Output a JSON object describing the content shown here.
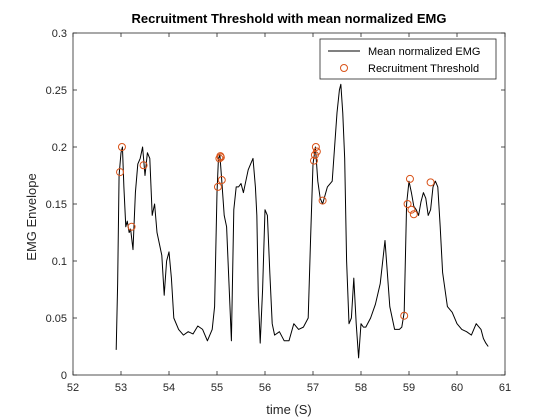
{
  "chart_data": {
    "type": "line",
    "title": "Recruitment Threshold with mean normalized EMG",
    "xlabel": "time (S)",
    "ylabel": "EMG Envelope",
    "xlim": [
      52,
      61
    ],
    "ylim": [
      0,
      0.3
    ],
    "xticks": [
      52,
      53,
      54,
      55,
      56,
      57,
      58,
      59,
      60,
      61
    ],
    "yticks": [
      0,
      0.05,
      0.1,
      0.15,
      0.2,
      0.25,
      0.3
    ],
    "xtick_labels": [
      "52",
      "53",
      "54",
      "55",
      "56",
      "57",
      "58",
      "59",
      "60",
      "61"
    ],
    "ytick_labels": [
      "0",
      "0.05",
      "0.1",
      "0.15",
      "0.2",
      "0.25",
      "0.3"
    ],
    "grid": false,
    "legend_position": "top-right",
    "series": [
      {
        "name": "Mean normalized EMG",
        "style": "line",
        "color": "#000000",
        "x": [
          52.9,
          52.93,
          52.96,
          53.0,
          53.03,
          53.06,
          53.1,
          53.13,
          53.17,
          53.2,
          53.25,
          53.3,
          53.35,
          53.4,
          53.45,
          53.5,
          53.55,
          53.6,
          53.65,
          53.7,
          53.75,
          53.8,
          53.85,
          53.9,
          53.95,
          54.0,
          54.05,
          54.1,
          54.2,
          54.3,
          54.4,
          54.5,
          54.6,
          54.7,
          54.8,
          54.9,
          54.95,
          55.0,
          55.03,
          55.06,
          55.1,
          55.15,
          55.2,
          55.25,
          55.3,
          55.35,
          55.4,
          55.45,
          55.5,
          55.55,
          55.6,
          55.65,
          55.7,
          55.75,
          55.8,
          55.83,
          55.86,
          55.9,
          55.95,
          56.0,
          56.05,
          56.1,
          56.15,
          56.2,
          56.3,
          56.4,
          56.5,
          56.6,
          56.7,
          56.8,
          56.9,
          56.95,
          57.0,
          57.05,
          57.1,
          57.15,
          57.2,
          57.3,
          57.4,
          57.45,
          57.5,
          57.55,
          57.58,
          57.62,
          57.66,
          57.7,
          57.75,
          57.8,
          57.85,
          57.9,
          57.95,
          58.0,
          58.05,
          58.1,
          58.2,
          58.3,
          58.4,
          58.5,
          58.6,
          58.7,
          58.8,
          58.85,
          58.9,
          58.95,
          59.0,
          59.05,
          59.1,
          59.15,
          59.2,
          59.25,
          59.3,
          59.35,
          59.4,
          59.45,
          59.5,
          59.55,
          59.6,
          59.65,
          59.7,
          59.8,
          59.9,
          60.0,
          60.1,
          60.2,
          60.3,
          60.4,
          60.5,
          60.55,
          60.6,
          60.65
        ],
        "y": [
          0.022,
          0.08,
          0.175,
          0.195,
          0.2,
          0.165,
          0.13,
          0.135,
          0.125,
          0.128,
          0.11,
          0.16,
          0.185,
          0.19,
          0.2,
          0.175,
          0.195,
          0.19,
          0.14,
          0.15,
          0.125,
          0.115,
          0.105,
          0.07,
          0.1,
          0.108,
          0.085,
          0.05,
          0.04,
          0.035,
          0.038,
          0.036,
          0.043,
          0.04,
          0.03,
          0.04,
          0.06,
          0.16,
          0.19,
          0.193,
          0.17,
          0.14,
          0.13,
          0.08,
          0.03,
          0.145,
          0.165,
          0.165,
          0.168,
          0.16,
          0.17,
          0.18,
          0.185,
          0.19,
          0.165,
          0.14,
          0.07,
          0.028,
          0.075,
          0.145,
          0.14,
          0.09,
          0.045,
          0.035,
          0.038,
          0.03,
          0.03,
          0.045,
          0.04,
          0.042,
          0.05,
          0.12,
          0.185,
          0.2,
          0.17,
          0.155,
          0.15,
          0.165,
          0.17,
          0.2,
          0.23,
          0.25,
          0.255,
          0.23,
          0.19,
          0.1,
          0.045,
          0.05,
          0.085,
          0.045,
          0.015,
          0.045,
          0.042,
          0.042,
          0.05,
          0.062,
          0.08,
          0.118,
          0.06,
          0.04,
          0.04,
          0.042,
          0.055,
          0.15,
          0.17,
          0.16,
          0.148,
          0.145,
          0.14,
          0.152,
          0.16,
          0.155,
          0.14,
          0.145,
          0.165,
          0.17,
          0.165,
          0.13,
          0.09,
          0.06,
          0.055,
          0.045,
          0.04,
          0.038,
          0.035,
          0.045,
          0.04,
          0.032,
          0.028,
          0.025
        ]
      },
      {
        "name": "Recruitment Threshold",
        "style": "marker",
        "marker": "circle",
        "color": "#D95319",
        "x": [
          52.98,
          53.02,
          53.22,
          53.47,
          55.02,
          55.05,
          55.07,
          55.08,
          55.1,
          57.02,
          57.04,
          57.06,
          57.08,
          57.2,
          58.9,
          58.97,
          59.02,
          59.05,
          59.1,
          59.45
        ],
        "y": [
          0.178,
          0.2,
          0.13,
          0.184,
          0.165,
          0.19,
          0.192,
          0.191,
          0.171,
          0.188,
          0.193,
          0.2,
          0.196,
          0.153,
          0.052,
          0.15,
          0.172,
          0.145,
          0.141,
          0.169
        ]
      }
    ]
  }
}
